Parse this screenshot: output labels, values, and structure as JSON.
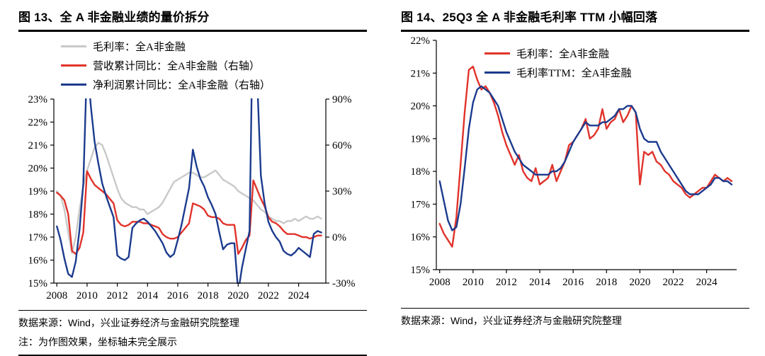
{
  "page": {
    "background": "#ffffff"
  },
  "colors": {
    "red": "#e0332b",
    "navy": "#1c3b8e",
    "gray": "#c9c9c9",
    "rule": "#000000"
  },
  "panels": [
    {
      "title": "图 13、全 A 非金融业绩的量价拆分",
      "legend": [
        {
          "label": "毛利率：全A非金融",
          "color": "#c9c9c9"
        },
        {
          "label": "营收累计同比：全A非金融（右轴）",
          "color": "#e0332b"
        },
        {
          "label": "净利润累计同比：全A非金融（右轴）",
          "color": "#1c3b8e"
        }
      ],
      "source_note": "数据来源：Wind，兴业证券经济与金融研究院整理",
      "footnote": "注：为作图效果，坐标轴未完全展示"
    },
    {
      "title": "图 14、25Q3 全 A 非金融毛利率 TTM 小幅回落",
      "legend": [
        {
          "label": "毛利率：全A非金融",
          "color": "#e0332b"
        },
        {
          "label": "毛利率TTM：全A非金融",
          "color": "#1c3b8e"
        }
      ],
      "source_note": "数据来源：Wind，兴业证券经济与金融研究院整理"
    }
  ],
  "chart_data": [
    {
      "type": "line",
      "title": "图 13、全 A 非金融业绩的量价拆分",
      "legend_position": "top-left-stacked",
      "grid": false,
      "x_range": [
        2007.8,
        2025.8
      ],
      "x_ticks": [
        2008,
        2010,
        2012,
        2014,
        2016,
        2018,
        2020,
        2022,
        2024
      ],
      "y_left": {
        "range": [
          15,
          23
        ],
        "tick_step": 1,
        "unit": "%"
      },
      "y_right": {
        "range": [
          -30,
          90
        ],
        "tick_step": 30,
        "unit": "%"
      },
      "note": "净利润同比尖峰超出坐标轴范围被截断（坐标轴未完全展示）",
      "series": [
        {
          "name": "毛利率：全A非金融",
          "axis": "left",
          "color": "#c9c9c9",
          "x_start": 2008,
          "x_step": 0.25,
          "values": [
            19.0,
            18.8,
            18.2,
            17.2,
            16.3,
            17.0,
            18.2,
            19.2,
            19.9,
            20.4,
            20.9,
            21.1,
            21.0,
            20.6,
            20.1,
            19.6,
            19.1,
            18.7,
            18.5,
            18.4,
            18.3,
            18.3,
            18.2,
            18.2,
            18.0,
            18.1,
            18.2,
            18.3,
            18.5,
            18.8,
            19.1,
            19.4,
            19.5,
            19.6,
            19.7,
            19.8,
            19.8,
            19.7,
            19.6,
            19.6,
            19.7,
            19.8,
            19.9,
            19.7,
            19.5,
            19.4,
            19.3,
            19.2,
            19.0,
            18.9,
            18.8,
            18.7,
            18.6,
            18.4,
            18.2,
            18.1,
            17.9,
            17.8,
            17.7,
            17.7,
            17.6,
            17.7,
            17.7,
            17.8,
            17.7,
            17.8,
            17.9,
            17.8,
            17.8,
            17.9,
            17.8
          ]
        },
        {
          "name": "营收累计同比：全A非金融（右轴）",
          "axis": "right",
          "color": "#e0332b",
          "x_start": 2008,
          "x_step": 0.25,
          "values": [
            29,
            27,
            24,
            15,
            -9,
            -11,
            -7,
            3,
            43,
            38,
            34,
            32,
            30,
            28,
            25,
            22,
            11,
            8,
            7,
            8,
            10,
            10,
            10,
            9,
            9,
            8,
            7,
            6,
            2,
            0,
            -1,
            -1,
            0,
            3,
            6,
            9,
            22,
            21,
            20,
            18,
            14,
            13,
            13,
            12,
            9,
            8,
            8,
            8,
            -11,
            -7,
            -2,
            1,
            37,
            31,
            25,
            20,
            13,
            10,
            9,
            7,
            4,
            2,
            2,
            2,
            1,
            0,
            0,
            -1,
            0,
            1,
            1
          ]
        },
        {
          "name": "净利润累计同比：全A非金融（右轴）",
          "axis": "right",
          "color": "#1c3b8e",
          "x_start": 2008,
          "x_step": 0.25,
          "values": [
            7,
            -2,
            -14,
            -24,
            -26,
            -16,
            5,
            35,
            115,
            85,
            62,
            48,
            35,
            27,
            20,
            13,
            -12,
            -14,
            -15,
            -13,
            6,
            9,
            11,
            12,
            10,
            7,
            4,
            0,
            -4,
            -10,
            -13,
            -11,
            -2,
            8,
            20,
            32,
            57,
            46,
            38,
            33,
            26,
            21,
            15,
            3,
            -8,
            -5,
            -4,
            -4,
            -36,
            -20,
            -8,
            4,
            165,
            105,
            40,
            22,
            10,
            4,
            0,
            -3,
            -9,
            -11,
            -12,
            -10,
            -7,
            -9,
            -11,
            -13,
            2,
            4,
            3
          ]
        }
      ]
    },
    {
      "type": "line",
      "title": "图 14、25Q3 全 A 非金融毛利率 TTM 小幅回落",
      "legend_position": "top-center-stacked",
      "grid": false,
      "x_range": [
        2007.8,
        2025.8
      ],
      "x_ticks": [
        2008,
        2010,
        2012,
        2014,
        2016,
        2018,
        2020,
        2022,
        2024
      ],
      "y_left": {
        "range": [
          15,
          22
        ],
        "tick_step": 1,
        "unit": "%"
      },
      "series": [
        {
          "name": "毛利率：全A非金融",
          "axis": "left",
          "color": "#e0332b",
          "x_start": 2008,
          "x_step": 0.25,
          "values": [
            16.4,
            16.1,
            15.9,
            15.7,
            16.6,
            18.2,
            19.8,
            21.1,
            21.2,
            20.8,
            20.5,
            20.6,
            20.4,
            20.1,
            19.7,
            19.2,
            18.8,
            18.5,
            18.2,
            18.5,
            18.0,
            17.8,
            17.7,
            18.1,
            17.6,
            17.7,
            17.8,
            18.2,
            17.7,
            18.0,
            18.3,
            18.8,
            18.9,
            19.1,
            19.3,
            19.6,
            19.0,
            19.1,
            19.3,
            19.9,
            19.3,
            19.5,
            19.6,
            19.9,
            19.5,
            19.7,
            20.0,
            19.8,
            17.6,
            18.6,
            18.5,
            18.6,
            18.3,
            18.2,
            18.0,
            17.9,
            17.7,
            17.6,
            17.5,
            17.3,
            17.2,
            17.3,
            17.4,
            17.5,
            17.5,
            17.7,
            17.9,
            17.8,
            17.7,
            17.8,
            17.7
          ]
        },
        {
          "name": "毛利率TTM：全A非金融",
          "axis": "left",
          "color": "#1c3b8e",
          "x_start": 2008,
          "x_step": 0.25,
          "values": [
            17.7,
            17.1,
            16.5,
            16.2,
            16.3,
            17.0,
            18.1,
            19.3,
            20.1,
            20.5,
            20.6,
            20.5,
            20.4,
            20.2,
            20.0,
            19.6,
            19.2,
            18.9,
            18.6,
            18.4,
            18.2,
            18.1,
            18.0,
            17.9,
            17.9,
            17.9,
            17.9,
            18.0,
            18.0,
            18.1,
            18.3,
            18.6,
            18.9,
            19.1,
            19.3,
            19.5,
            19.4,
            19.4,
            19.4,
            19.5,
            19.5,
            19.6,
            19.7,
            19.9,
            19.9,
            20.0,
            20.0,
            19.8,
            19.3,
            19.0,
            18.9,
            18.9,
            18.9,
            18.6,
            18.4,
            18.2,
            18.0,
            17.8,
            17.6,
            17.4,
            17.3,
            17.3,
            17.3,
            17.4,
            17.5,
            17.6,
            17.8,
            17.8,
            17.7,
            17.7,
            17.6
          ]
        }
      ]
    }
  ]
}
